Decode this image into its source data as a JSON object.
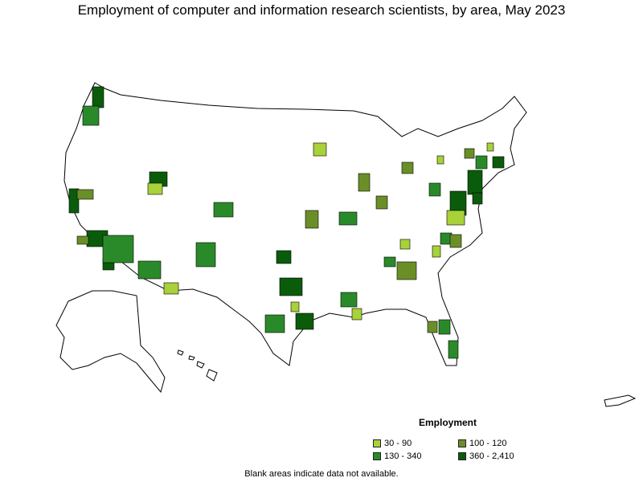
{
  "title": "Employment of computer and information research scientists, by area, May 2023",
  "legend": {
    "title": "Employment",
    "items": [
      {
        "label": "30 - 90",
        "color": "#a8d13a"
      },
      {
        "label": "100 - 120",
        "color": "#6b8f28"
      },
      {
        "label": "130 - 340",
        "color": "#2a8a2a"
      },
      {
        "label": "360 - 2,410",
        "color": "#0a5c0a"
      }
    ]
  },
  "note": "Blank areas indicate data not available.",
  "colors": {
    "outline": "#000000",
    "background": "#ffffff"
  }
}
